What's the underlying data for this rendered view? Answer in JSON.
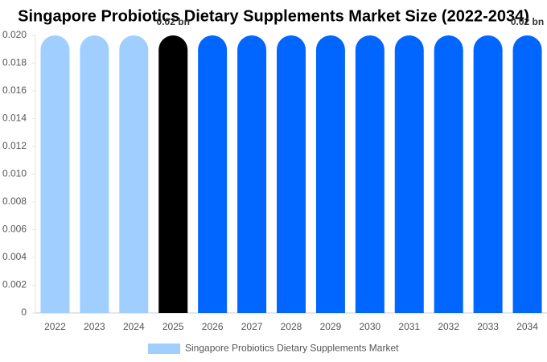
{
  "chart_data": {
    "type": "bar",
    "title": "Singapore Probiotics Dietary Supplements Market Size (2022-2034)",
    "categories": [
      "2022",
      "2023",
      "2024",
      "2025",
      "2026",
      "2027",
      "2028",
      "2029",
      "2030",
      "2031",
      "2032",
      "2033",
      "2034"
    ],
    "series": [
      {
        "name": "Singapore Probiotics Dietary Supplements Market",
        "color": "#a0cfff",
        "values": [
          0.02,
          0.02,
          0.02,
          0.02,
          0.02,
          0.02,
          0.02,
          0.02,
          0.02,
          0.02,
          0.02,
          0.02,
          0.02
        ],
        "value_labels": [
          null,
          null,
          null,
          "0.02 bn",
          null,
          null,
          null,
          null,
          null,
          null,
          null,
          null,
          "0.02 bn"
        ],
        "colors": [
          "#a0cfff",
          "#a0cfff",
          "#a0cfff",
          "#000000",
          "#0066ff",
          "#0066ff",
          "#0066ff",
          "#0066ff",
          "#0066ff",
          "#0066ff",
          "#0066ff",
          "#0066ff",
          "#0066ff"
        ]
      }
    ],
    "ylim": [
      0,
      0.02
    ],
    "yticks": [
      0,
      {
        "value": 0.002,
        "label": "0.002"
      },
      {
        "value": 0.004,
        "label": "0.004"
      },
      {
        "value": 0.006,
        "label": "0.006"
      },
      {
        "value": 0.008,
        "label": "0.008"
      },
      {
        "value": 0.01,
        "label": "0.010"
      },
      {
        "value": 0.012,
        "label": "0.012"
      },
      {
        "value": 0.014,
        "label": "0.014"
      },
      {
        "value": 0.016,
        "label": "0.016"
      },
      {
        "value": 0.018,
        "label": "0.018"
      },
      {
        "value": 0.02,
        "label": "0.020"
      }
    ],
    "grid": false,
    "legend": "bottom"
  }
}
